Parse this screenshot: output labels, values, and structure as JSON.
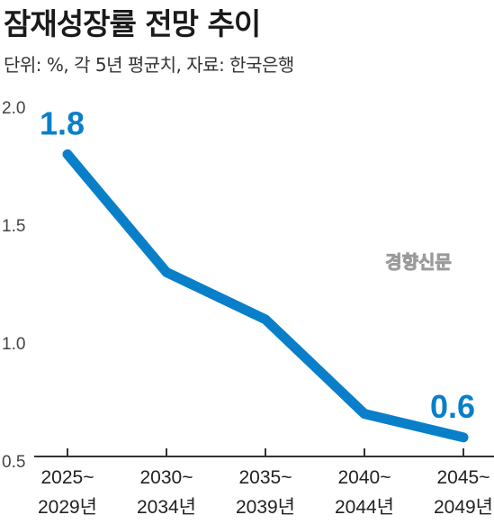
{
  "header": {
    "title": "잠재성장률 전망 추이",
    "subtitle": "단위: %, 각 5년 평균치, 자료: 한국은행"
  },
  "watermark": "경향신문",
  "colors": {
    "line": "#0a7fc9",
    "label": "#0a7fc9",
    "axis": "#333333"
  },
  "chart_data": {
    "type": "line",
    "categories": [
      [
        "2025~",
        "2029년"
      ],
      [
        "2030~",
        "2034년"
      ],
      [
        "2035~",
        "2039년"
      ],
      [
        "2040~",
        "2044년"
      ],
      [
        "2045~",
        "2049년"
      ]
    ],
    "series": [
      {
        "values": [
          1.8,
          1.3,
          1.1,
          0.7,
          0.6
        ]
      }
    ],
    "data_labels": [
      {
        "index": 0,
        "text": "1.8"
      },
      {
        "index": 4,
        "text": "0.6"
      }
    ],
    "yticks": [
      "2.0",
      "1.5",
      "1.0",
      "0.5"
    ],
    "ylim": [
      0.5,
      2.0
    ],
    "grid": false
  }
}
